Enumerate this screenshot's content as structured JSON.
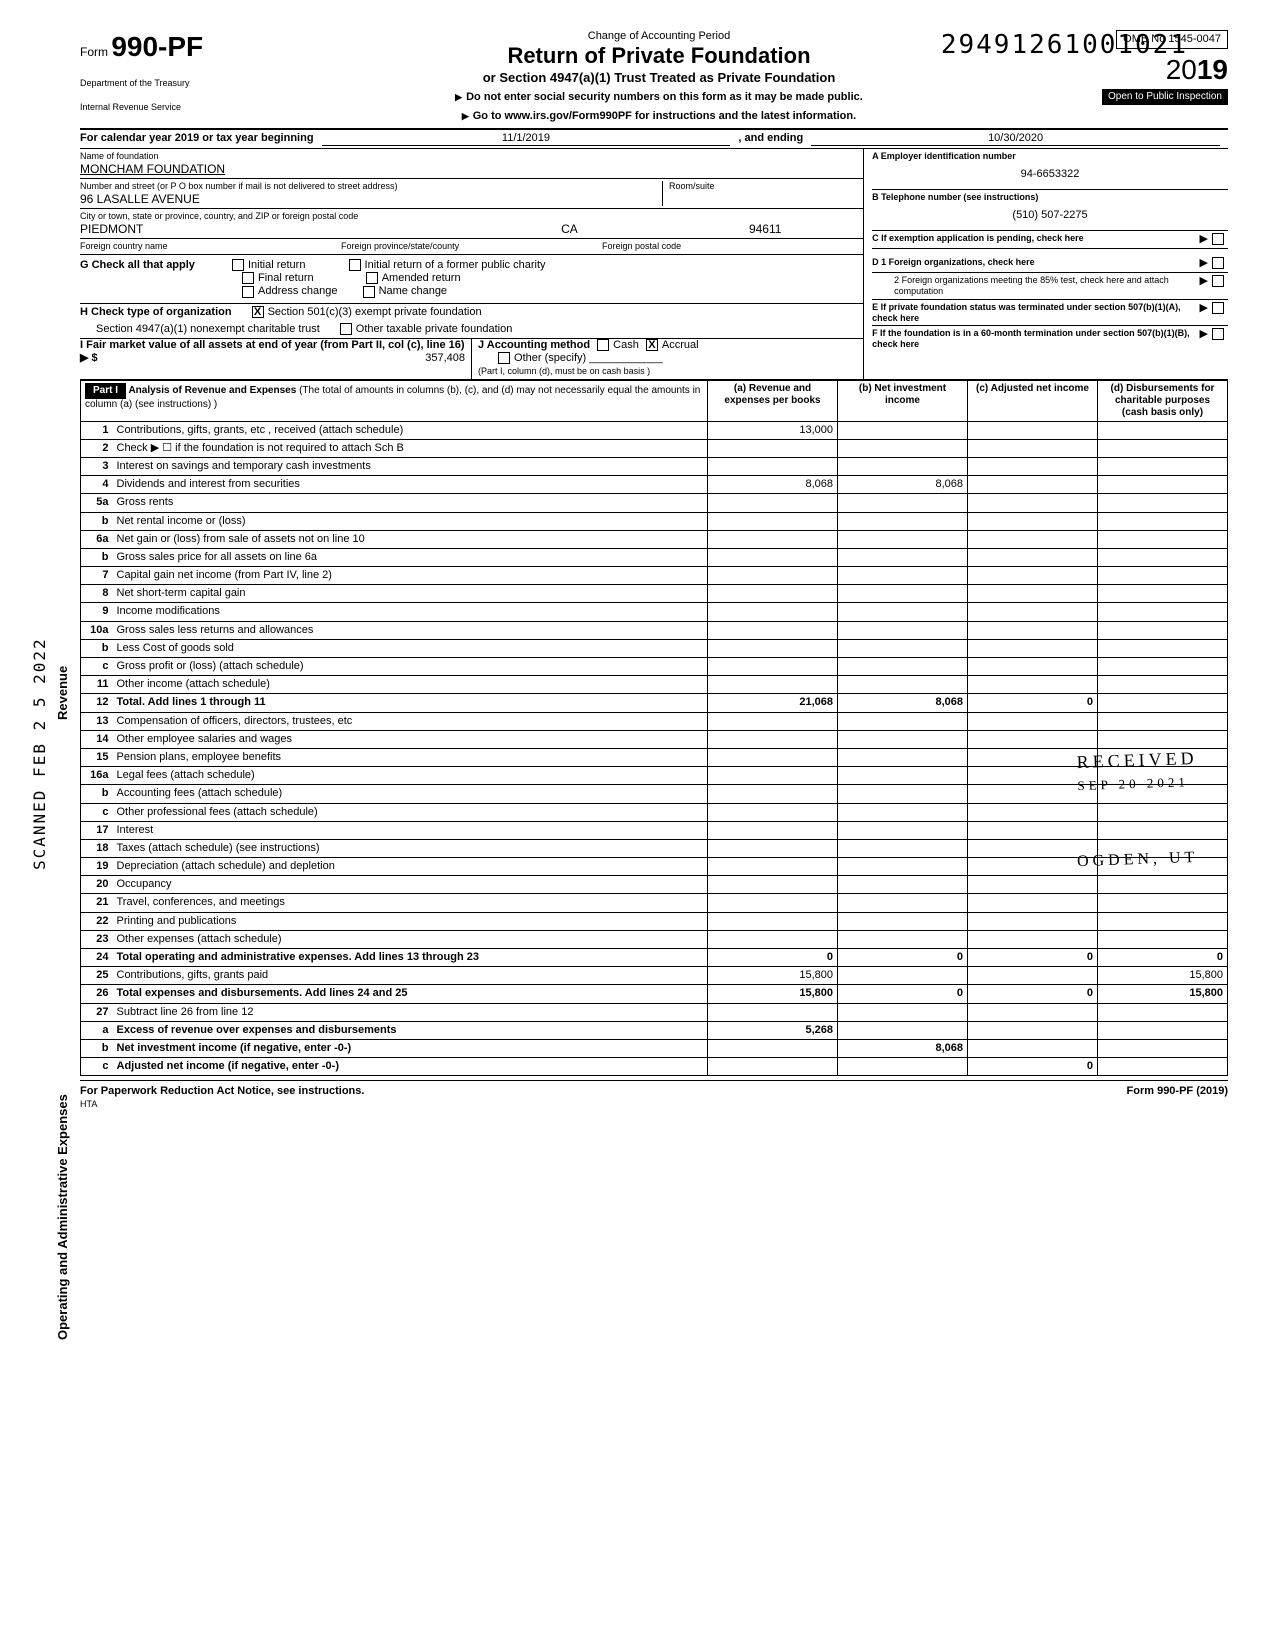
{
  "document_number": "29491261001021",
  "form": {
    "form_no_prefix": "Form",
    "form_no": "990-PF",
    "dept1": "Department of the Treasury",
    "dept2": "Internal Revenue Service",
    "change_period": "Change of Accounting Period",
    "title": "Return of Private Foundation",
    "subtitle": "or Section 4947(a)(1) Trust Treated as Private Foundation",
    "instr1": "Do not enter social security numbers on this form as it may be made public.",
    "instr2": "Go to www.irs.gov/Form990PF for instructions and the latest information.",
    "omb": "OMB No 1545-0047",
    "year_prefix": "20",
    "year": "19",
    "public": "Open to Public Inspection"
  },
  "period": {
    "label": "For calendar year 2019 or tax year beginning",
    "start": "11/1/2019",
    "mid": ", and ending",
    "end": "10/30/2020"
  },
  "foundation": {
    "name_label": "Name of foundation",
    "name": "MONCHAM FOUNDATION",
    "street_label": "Number and street (or P O  box number if mail is not delivered to street address)",
    "room_label": "Room/suite",
    "street": "96 LASALLE AVENUE",
    "city_label": "City or town, state or province, country, and ZIP or foreign postal code",
    "city": "PIEDMONT",
    "state": "CA",
    "zip": "94611",
    "foreign_country_label": "Foreign country name",
    "foreign_prov_label": "Foreign province/state/county",
    "foreign_postal_label": "Foreign postal code"
  },
  "boxA": {
    "label": "A  Employer identification number",
    "value": "94-6653322"
  },
  "boxB": {
    "label": "B  Telephone number (see instructions)",
    "value": "(510) 507-2275"
  },
  "boxC": {
    "label": "C  If exemption application is pending, check here"
  },
  "boxD1": {
    "label": "D  1  Foreign organizations, check here"
  },
  "boxD2": {
    "label": "2  Foreign organizations meeting the 85% test, check here and attach computation"
  },
  "boxE": {
    "label": "E  If private foundation status was terminated under section 507(b)(1)(A), check here"
  },
  "boxF": {
    "label": "F  If the foundation is in a 60-month termination under section 507(b)(1)(B), check here"
  },
  "sectionG": {
    "label": "G  Check all that apply",
    "opts": [
      "Initial return",
      "Final return",
      "Address change",
      "Initial return of a former public charity",
      "Amended return",
      "Name change"
    ]
  },
  "sectionH": {
    "label": "H  Check type of organization",
    "opt1": "Section 501(c)(3) exempt private foundation",
    "opt2": "Section 4947(a)(1) nonexempt charitable trust",
    "opt3": "Other taxable private foundation"
  },
  "sectionI": {
    "label": "I  Fair market value of all assets at end of year (from Part II, col (c), line 16) ▶ $",
    "value": "357,408"
  },
  "sectionJ": {
    "label": "J  Accounting method",
    "cash": "Cash",
    "accrual": "Accrual",
    "other": "Other (specify)",
    "note": "(Part I, column (d), must be on cash basis )"
  },
  "part1": {
    "hdr": "Part I",
    "title": "Analysis of Revenue and Expenses",
    "title_note": "(The total of amounts in columns (b), (c), and (d) may not necessarily equal the amounts in column (a) (see instructions) )",
    "col_a": "(a) Revenue and expenses per books",
    "col_b": "(b) Net investment income",
    "col_c": "(c) Adjusted net income",
    "col_d": "(d) Disbursements for charitable purposes (cash basis only)"
  },
  "side_revenue": "Revenue",
  "side_expenses": "Operating and Administrative Expenses",
  "scanned": "SCANNED FEB 2 5 2022",
  "received": "RECEIVED",
  "received_date": "SEP 20 2021",
  "ogden": "OGDEN, UT",
  "lines": [
    {
      "no": "1",
      "desc": "Contributions, gifts, grants, etc , received (attach schedule)",
      "a": "13,000",
      "b": "",
      "c": "",
      "d": ""
    },
    {
      "no": "2",
      "desc": "Check ▶ ☐ if the foundation is not required to attach Sch  B",
      "a": "",
      "b": "",
      "c": "",
      "d": ""
    },
    {
      "no": "3",
      "desc": "Interest on savings and temporary cash investments",
      "a": "",
      "b": "",
      "c": "",
      "d": ""
    },
    {
      "no": "4",
      "desc": "Dividends and interest from securities",
      "a": "8,068",
      "b": "8,068",
      "c": "",
      "d": ""
    },
    {
      "no": "5a",
      "desc": "Gross rents",
      "a": "",
      "b": "",
      "c": "",
      "d": ""
    },
    {
      "no": "b",
      "desc": "Net rental income or (loss)",
      "a": "",
      "b": "",
      "c": "",
      "d": ""
    },
    {
      "no": "6a",
      "desc": "Net gain or (loss) from sale of assets not on line 10",
      "a": "",
      "b": "",
      "c": "",
      "d": ""
    },
    {
      "no": "b",
      "desc": "Gross sales price for all assets on line 6a",
      "a": "",
      "b": "",
      "c": "",
      "d": ""
    },
    {
      "no": "7",
      "desc": "Capital gain net income (from Part IV, line 2)",
      "a": "",
      "b": "",
      "c": "",
      "d": ""
    },
    {
      "no": "8",
      "desc": "Net short-term capital gain",
      "a": "",
      "b": "",
      "c": "",
      "d": ""
    },
    {
      "no": "9",
      "desc": "Income modifications",
      "a": "",
      "b": "",
      "c": "",
      "d": ""
    },
    {
      "no": "10a",
      "desc": "Gross sales less returns and allowances",
      "a": "",
      "b": "",
      "c": "",
      "d": ""
    },
    {
      "no": "b",
      "desc": "Less  Cost of goods sold",
      "a": "",
      "b": "",
      "c": "",
      "d": ""
    },
    {
      "no": "c",
      "desc": "Gross profit or (loss) (attach schedule)",
      "a": "",
      "b": "",
      "c": "",
      "d": ""
    },
    {
      "no": "11",
      "desc": "Other income (attach schedule)",
      "a": "",
      "b": "",
      "c": "",
      "d": ""
    },
    {
      "no": "12",
      "desc": "Total. Add lines 1 through 11",
      "a": "21,068",
      "b": "8,068",
      "c": "0",
      "d": "",
      "bold": true
    },
    {
      "no": "13",
      "desc": "Compensation of officers, directors, trustees, etc",
      "a": "",
      "b": "",
      "c": "",
      "d": ""
    },
    {
      "no": "14",
      "desc": "Other employee salaries and wages",
      "a": "",
      "b": "",
      "c": "",
      "d": ""
    },
    {
      "no": "15",
      "desc": "Pension plans, employee benefits",
      "a": "",
      "b": "",
      "c": "",
      "d": ""
    },
    {
      "no": "16a",
      "desc": "Legal fees (attach schedule)",
      "a": "",
      "b": "",
      "c": "",
      "d": ""
    },
    {
      "no": "b",
      "desc": "Accounting fees (attach schedule)",
      "a": "",
      "b": "",
      "c": "",
      "d": ""
    },
    {
      "no": "c",
      "desc": "Other professional fees (attach schedule)",
      "a": "",
      "b": "",
      "c": "",
      "d": ""
    },
    {
      "no": "17",
      "desc": "Interest",
      "a": "",
      "b": "",
      "c": "",
      "d": ""
    },
    {
      "no": "18",
      "desc": "Taxes (attach schedule) (see instructions)",
      "a": "",
      "b": "",
      "c": "",
      "d": ""
    },
    {
      "no": "19",
      "desc": "Depreciation (attach schedule) and depletion",
      "a": "",
      "b": "",
      "c": "",
      "d": ""
    },
    {
      "no": "20",
      "desc": "Occupancy",
      "a": "",
      "b": "",
      "c": "",
      "d": ""
    },
    {
      "no": "21",
      "desc": "Travel, conferences, and meetings",
      "a": "",
      "b": "",
      "c": "",
      "d": ""
    },
    {
      "no": "22",
      "desc": "Printing and publications",
      "a": "",
      "b": "",
      "c": "",
      "d": ""
    },
    {
      "no": "23",
      "desc": "Other expenses (attach schedule)",
      "a": "",
      "b": "",
      "c": "",
      "d": ""
    },
    {
      "no": "24",
      "desc": "Total operating and administrative expenses. Add lines 13 through 23",
      "a": "0",
      "b": "0",
      "c": "0",
      "d": "0",
      "bold": true
    },
    {
      "no": "25",
      "desc": "Contributions, gifts, grants paid",
      "a": "15,800",
      "b": "",
      "c": "",
      "d": "15,800"
    },
    {
      "no": "26",
      "desc": "Total expenses and disbursements. Add lines 24 and 25",
      "a": "15,800",
      "b": "0",
      "c": "0",
      "d": "15,800",
      "bold": true
    },
    {
      "no": "27",
      "desc": "Subtract line 26 from line 12",
      "a": "",
      "b": "",
      "c": "",
      "d": ""
    },
    {
      "no": "a",
      "desc": "Excess of revenue over expenses and disbursements",
      "a": "5,268",
      "b": "",
      "c": "",
      "d": "",
      "bold": true
    },
    {
      "no": "b",
      "desc": "Net investment income (if negative, enter -0-)",
      "a": "",
      "b": "8,068",
      "c": "",
      "d": "",
      "bold": true
    },
    {
      "no": "c",
      "desc": "Adjusted net income (if negative, enter -0-)",
      "a": "",
      "b": "",
      "c": "0",
      "d": "",
      "bold": true
    }
  ],
  "footer": {
    "left": "For Paperwork Reduction Act Notice, see instructions.",
    "hta": "HTA",
    "right": "Form 990-PF (2019)"
  }
}
